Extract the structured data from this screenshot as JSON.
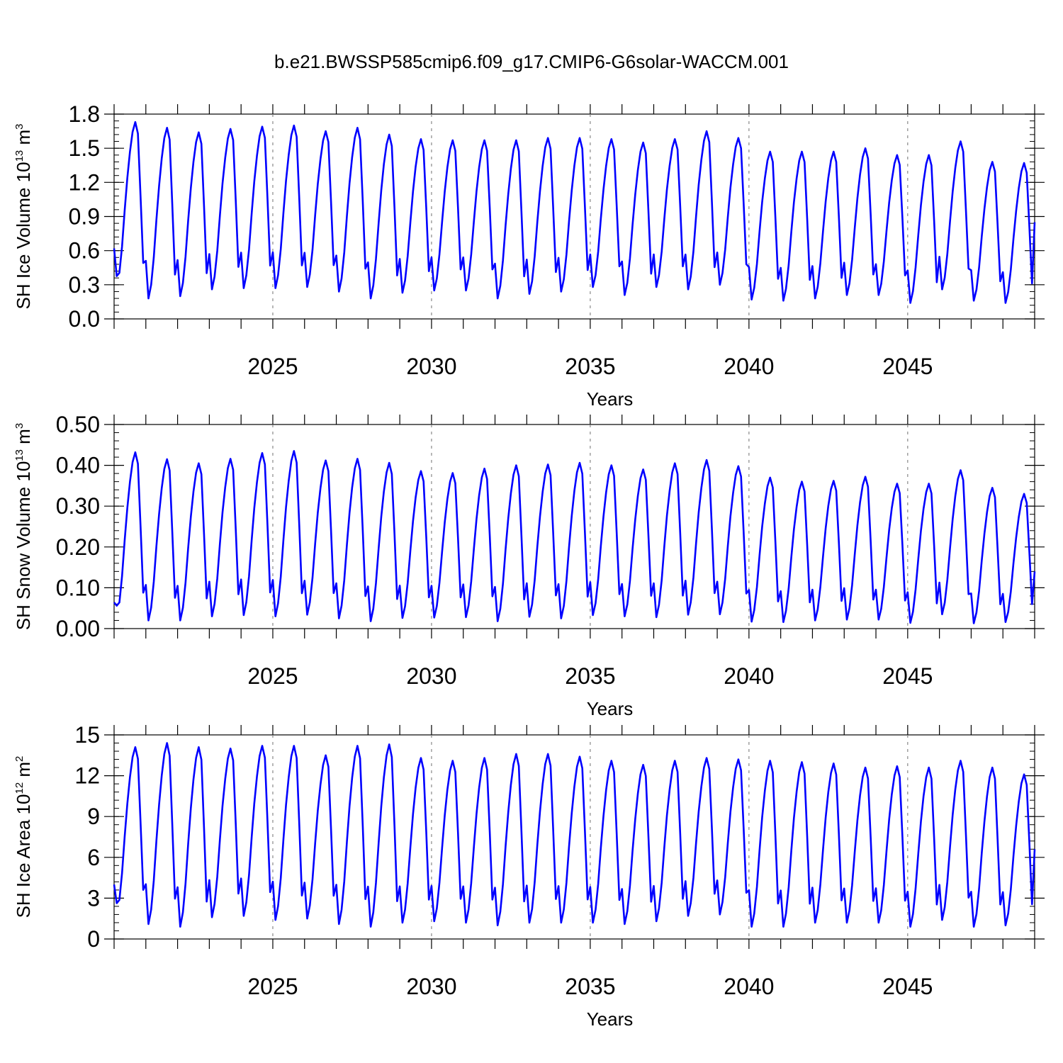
{
  "title": "b.e21.BWSSP585cmip6.f09_g17.CMIP6-G6solar-WACCM.001",
  "colors": {
    "series": "#0000ff",
    "axis": "#000000",
    "refline": "#888888"
  },
  "chart_data": [
    {
      "type": "line",
      "id": "ice-volume",
      "xlabel": "Years",
      "ylabel_parts": [
        "SH Ice Volume 10",
        "13",
        " m",
        "3"
      ],
      "xlim": [
        2020.0,
        2049.0
      ],
      "ylim": [
        0.0,
        1.8
      ],
      "xticks": [
        2025,
        2030,
        2035,
        2040,
        2045
      ],
      "yticks": [
        "0.0",
        "0.3",
        "0.6",
        "0.9",
        "1.2",
        "1.5",
        "1.8"
      ],
      "yminor_step": 0.06,
      "refline_years": [
        2025,
        2030,
        2035,
        2040,
        2045
      ],
      "years": [
        2020,
        2021,
        2022,
        2023,
        2024,
        2025,
        2026,
        2027,
        2028,
        2029,
        2030,
        2031,
        2032,
        2033,
        2034,
        2035,
        2036,
        2037,
        2038,
        2039,
        2040,
        2041,
        2042,
        2043,
        2044,
        2045,
        2046,
        2047,
        2048
      ],
      "annual_min": [
        0.29,
        0.18,
        0.2,
        0.26,
        0.27,
        0.27,
        0.28,
        0.24,
        0.18,
        0.23,
        0.25,
        0.25,
        0.18,
        0.22,
        0.24,
        0.28,
        0.21,
        0.28,
        0.26,
        0.3,
        0.17,
        0.16,
        0.18,
        0.21,
        0.21,
        0.14,
        0.26,
        0.16,
        0.14
      ],
      "annual_max": [
        1.73,
        1.68,
        1.64,
        1.67,
        1.69,
        1.7,
        1.65,
        1.68,
        1.62,
        1.58,
        1.57,
        1.57,
        1.57,
        1.59,
        1.59,
        1.58,
        1.55,
        1.58,
        1.65,
        1.59,
        1.47,
        1.47,
        1.47,
        1.5,
        1.44,
        1.44,
        1.56,
        1.38,
        1.37
      ],
      "start_value": 0.62,
      "end_value": 0.85
    },
    {
      "type": "line",
      "id": "snow-volume",
      "xlabel": "Years",
      "ylabel_parts": [
        "SH Snow Volume 10",
        "13",
        " m",
        "3"
      ],
      "xlim": [
        2020.0,
        2049.0
      ],
      "ylim": [
        0.0,
        0.5
      ],
      "xticks": [
        2025,
        2030,
        2035,
        2040,
        2045
      ],
      "yticks": [
        "0.00",
        "0.10",
        "0.20",
        "0.30",
        "0.40",
        "0.50"
      ],
      "yminor_step": 0.02,
      "refline_years": [
        2025,
        2030,
        2035,
        2040,
        2045
      ],
      "years": [
        2020,
        2021,
        2022,
        2023,
        2024,
        2025,
        2026,
        2027,
        2028,
        2029,
        2030,
        2031,
        2032,
        2033,
        2034,
        2035,
        2036,
        2037,
        2038,
        2039,
        2040,
        2041,
        2042,
        2043,
        2044,
        2045,
        2046,
        2047,
        2048
      ],
      "annual_min": [
        0.032,
        0.02,
        0.02,
        0.03,
        0.033,
        0.03,
        0.034,
        0.025,
        0.018,
        0.026,
        0.027,
        0.028,
        0.018,
        0.029,
        0.025,
        0.033,
        0.03,
        0.028,
        0.034,
        0.035,
        0.017,
        0.016,
        0.02,
        0.022,
        0.022,
        0.014,
        0.035,
        0.013,
        0.016
      ],
      "annual_max": [
        0.432,
        0.415,
        0.405,
        0.416,
        0.43,
        0.435,
        0.412,
        0.416,
        0.406,
        0.386,
        0.381,
        0.392,
        0.4,
        0.402,
        0.406,
        0.4,
        0.39,
        0.405,
        0.413,
        0.398,
        0.37,
        0.36,
        0.362,
        0.372,
        0.355,
        0.355,
        0.388,
        0.345,
        0.33
      ],
      "start_value": 0.064,
      "end_value": 0.14
    },
    {
      "type": "line",
      "id": "ice-area",
      "xlabel": "Years",
      "ylabel_parts": [
        "SH Ice Area 10",
        "12",
        " m",
        "2"
      ],
      "xlim": [
        2020.0,
        2049.0
      ],
      "ylim": [
        0,
        15
      ],
      "xticks": [
        2025,
        2030,
        2035,
        2040,
        2045
      ],
      "yticks": [
        "0",
        "3",
        "6",
        "9",
        "12",
        "15"
      ],
      "yminor_step": 0.6,
      "refline_years": [
        2025,
        2030,
        2035,
        2040,
        2045
      ],
      "years": [
        2020,
        2021,
        2022,
        2023,
        2024,
        2025,
        2026,
        2027,
        2028,
        2029,
        2030,
        2031,
        2032,
        2033,
        2034,
        2035,
        2036,
        2037,
        2038,
        2039,
        2040,
        2041,
        2042,
        2043,
        2044,
        2045,
        2046,
        2047,
        2048
      ],
      "annual_min": [
        1.9,
        1.1,
        0.9,
        1.6,
        1.7,
        1.4,
        1.5,
        1.1,
        0.9,
        1.2,
        1.3,
        1.2,
        1.0,
        1.2,
        1.2,
        1.2,
        1.1,
        1.3,
        1.7,
        1.8,
        0.9,
        0.9,
        1.2,
        1.2,
        1.2,
        0.9,
        1.4,
        0.9,
        1.0
      ],
      "annual_max": [
        14.1,
        14.4,
        14.1,
        14.0,
        14.2,
        14.2,
        13.5,
        14.2,
        14.3,
        13.3,
        13.1,
        13.3,
        13.6,
        13.6,
        13.4,
        13.1,
        12.8,
        13.1,
        13.3,
        13.2,
        13.1,
        13.0,
        12.9,
        12.6,
        12.7,
        12.6,
        13.1,
        12.6,
        12.1
      ],
      "start_value": 4.0,
      "end_value": 6.6
    }
  ]
}
